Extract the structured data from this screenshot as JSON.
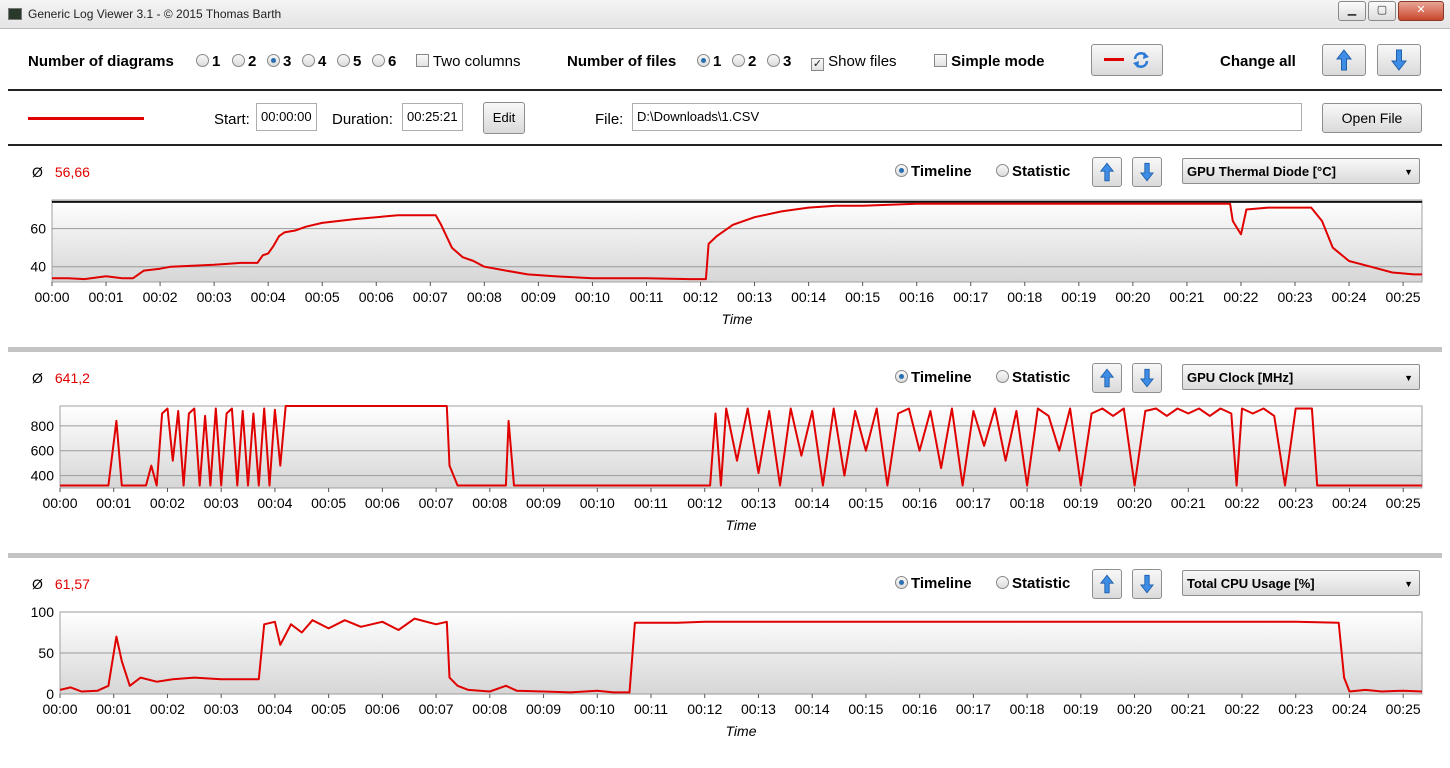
{
  "window": {
    "title": "Generic Log Viewer 3.1 - © 2015 Thomas Barth",
    "minimize": "▁",
    "maximize": "▢",
    "close": "✕"
  },
  "toolbar": {
    "num_diagrams_label": "Number of diagrams",
    "diagram_options": [
      "1",
      "2",
      "3",
      "4",
      "5",
      "6"
    ],
    "diagram_selected": "3",
    "two_columns_label": "Two columns",
    "two_columns_checked": false,
    "num_files_label": "Number of files",
    "file_options": [
      "1",
      "2",
      "3"
    ],
    "file_selected": "1",
    "show_files_label": "Show files",
    "show_files_checked": true,
    "simple_mode_label": "Simple mode",
    "simple_mode_checked": false,
    "change_all_label": "Change all",
    "line_color": "#e00000"
  },
  "file_row": {
    "start_label": "Start:",
    "start_value": "00:00:00",
    "duration_label": "Duration:",
    "duration_value": "00:25:21",
    "edit_label": "Edit",
    "file_label": "File:",
    "file_value": "D:\\Downloads\\1.CSV",
    "open_file_label": "Open File"
  },
  "common": {
    "avg_symbol": "Ø",
    "timeline_label": "Timeline",
    "statistic_label": "Statistic",
    "x_axis_label": "Time",
    "x_ticks": [
      "00:00",
      "00:01",
      "00:02",
      "00:03",
      "00:04",
      "00:05",
      "00:06",
      "00:07",
      "00:08",
      "00:09",
      "00:10",
      "00:11",
      "00:12",
      "00:13",
      "00:14",
      "00:15",
      "00:16",
      "00:17",
      "00:18",
      "00:19",
      "00:20",
      "00:21",
      "00:22",
      "00:23",
      "00:24",
      "00:25"
    ],
    "series_color": "#e00000"
  },
  "panels": [
    {
      "avg": "56,66",
      "sensor": "GPU Thermal Diode [°C]",
      "mode": "Timeline"
    },
    {
      "avg": "641,2",
      "sensor": "GPU Clock [MHz]",
      "mode": "Timeline"
    },
    {
      "avg": "61,57",
      "sensor": "Total CPU Usage [%]",
      "mode": "Timeline"
    }
  ],
  "chart_data": [
    {
      "type": "line",
      "ylabel": "",
      "xlabel": "Time",
      "ylim": [
        32,
        75
      ],
      "yticks": [
        40,
        60
      ],
      "x_unit": "minutes",
      "xlim": [
        0,
        25.35
      ],
      "reference_line": 74,
      "series": [
        {
          "values": [
            [
              0,
              34
            ],
            [
              0.3,
              34
            ],
            [
              0.6,
              33.5
            ],
            [
              1.0,
              35
            ],
            [
              1.3,
              34
            ],
            [
              1.5,
              34
            ],
            [
              1.7,
              38
            ],
            [
              2.0,
              39
            ],
            [
              2.2,
              40
            ],
            [
              2.6,
              40.5
            ],
            [
              3.0,
              41
            ],
            [
              3.5,
              42
            ],
            [
              3.8,
              42
            ],
            [
              3.9,
              46
            ],
            [
              4.0,
              47
            ],
            [
              4.1,
              51
            ],
            [
              4.2,
              56
            ],
            [
              4.3,
              58
            ],
            [
              4.5,
              59
            ],
            [
              4.7,
              61
            ],
            [
              5.0,
              63
            ],
            [
              5.3,
              64
            ],
            [
              5.6,
              65
            ],
            [
              6.0,
              66
            ],
            [
              6.4,
              67
            ],
            [
              6.8,
              67
            ],
            [
              7.1,
              67
            ],
            [
              7.2,
              62
            ],
            [
              7.4,
              50
            ],
            [
              7.6,
              45
            ],
            [
              7.8,
              43
            ],
            [
              8.0,
              40
            ],
            [
              8.4,
              38
            ],
            [
              8.8,
              36
            ],
            [
              9.3,
              35
            ],
            [
              10.0,
              34
            ],
            [
              11.0,
              34
            ],
            [
              11.8,
              33.5
            ],
            [
              12.1,
              33.5
            ],
            [
              12.15,
              52
            ],
            [
              12.3,
              56
            ],
            [
              12.6,
              62
            ],
            [
              13.0,
              66
            ],
            [
              13.5,
              69
            ],
            [
              14.0,
              71
            ],
            [
              14.5,
              72
            ],
            [
              15.0,
              72
            ],
            [
              15.5,
              72.5
            ],
            [
              16.0,
              73
            ],
            [
              17.0,
              73
            ],
            [
              18.0,
              73
            ],
            [
              19.0,
              73
            ],
            [
              20.0,
              73
            ],
            [
              21.0,
              73
            ],
            [
              21.8,
              73
            ],
            [
              21.85,
              64
            ],
            [
              22.0,
              57
            ],
            [
              22.1,
              70
            ],
            [
              22.5,
              71
            ],
            [
              23.0,
              71
            ],
            [
              23.3,
              71
            ],
            [
              23.5,
              64
            ],
            [
              23.7,
              50
            ],
            [
              24.0,
              43
            ],
            [
              24.4,
              40
            ],
            [
              24.8,
              37
            ],
            [
              25.2,
              36
            ],
            [
              25.35,
              36
            ]
          ]
        }
      ]
    },
    {
      "type": "line",
      "ylabel": "",
      "xlabel": "Time",
      "ylim": [
        300,
        960
      ],
      "yticks": [
        400,
        600,
        800
      ],
      "x_unit": "minutes",
      "xlim": [
        0,
        25.35
      ],
      "series": [
        {
          "values": [
            [
              0,
              320
            ],
            [
              0.9,
              320
            ],
            [
              1.05,
              840
            ],
            [
              1.15,
              320
            ],
            [
              1.6,
              320
            ],
            [
              1.7,
              480
            ],
            [
              1.8,
              320
            ],
            [
              1.9,
              900
            ],
            [
              2.0,
              940
            ],
            [
              2.1,
              520
            ],
            [
              2.2,
              920
            ],
            [
              2.3,
              320
            ],
            [
              2.4,
              900
            ],
            [
              2.5,
              940
            ],
            [
              2.6,
              320
            ],
            [
              2.7,
              880
            ],
            [
              2.8,
              320
            ],
            [
              2.9,
              940
            ],
            [
              3.0,
              320
            ],
            [
              3.1,
              900
            ],
            [
              3.2,
              940
            ],
            [
              3.3,
              320
            ],
            [
              3.4,
              920
            ],
            [
              3.5,
              320
            ],
            [
              3.6,
              900
            ],
            [
              3.7,
              320
            ],
            [
              3.8,
              940
            ],
            [
              3.9,
              320
            ],
            [
              4.0,
              930
            ],
            [
              4.1,
              480
            ],
            [
              4.2,
              960
            ],
            [
              7.2,
              960
            ],
            [
              7.25,
              480
            ],
            [
              7.4,
              320
            ],
            [
              8.3,
              320
            ],
            [
              8.35,
              840
            ],
            [
              8.45,
              320
            ],
            [
              12.1,
              320
            ],
            [
              12.2,
              900
            ],
            [
              12.3,
              320
            ],
            [
              12.4,
              940
            ],
            [
              12.6,
              520
            ],
            [
              12.8,
              940
            ],
            [
              13.0,
              420
            ],
            [
              13.2,
              920
            ],
            [
              13.4,
              320
            ],
            [
              13.6,
              940
            ],
            [
              13.8,
              560
            ],
            [
              14.0,
              920
            ],
            [
              14.2,
              320
            ],
            [
              14.4,
              940
            ],
            [
              14.6,
              400
            ],
            [
              14.8,
              920
            ],
            [
              15.0,
              600
            ],
            [
              15.2,
              940
            ],
            [
              15.4,
              320
            ],
            [
              15.6,
              900
            ],
            [
              15.8,
              940
            ],
            [
              16.0,
              600
            ],
            [
              16.2,
              920
            ],
            [
              16.4,
              460
            ],
            [
              16.6,
              940
            ],
            [
              16.8,
              320
            ],
            [
              17.0,
              920
            ],
            [
              17.2,
              640
            ],
            [
              17.4,
              940
            ],
            [
              17.6,
              520
            ],
            [
              17.8,
              920
            ],
            [
              18.0,
              320
            ],
            [
              18.2,
              940
            ],
            [
              18.4,
              880
            ],
            [
              18.6,
              600
            ],
            [
              18.8,
              940
            ],
            [
              19.0,
              320
            ],
            [
              19.2,
              900
            ],
            [
              19.4,
              940
            ],
            [
              19.6,
              880
            ],
            [
              19.8,
              940
            ],
            [
              20.0,
              320
            ],
            [
              20.2,
              920
            ],
            [
              20.4,
              940
            ],
            [
              20.6,
              880
            ],
            [
              20.8,
              940
            ],
            [
              21.0,
              900
            ],
            [
              21.2,
              940
            ],
            [
              21.4,
              880
            ],
            [
              21.6,
              940
            ],
            [
              21.8,
              900
            ],
            [
              21.9,
              320
            ],
            [
              22.0,
              940
            ],
            [
              22.2,
              900
            ],
            [
              22.4,
              940
            ],
            [
              22.6,
              880
            ],
            [
              22.8,
              320
            ],
            [
              23.0,
              940
            ],
            [
              23.3,
              940
            ],
            [
              23.4,
              320
            ],
            [
              25.35,
              320
            ]
          ]
        }
      ]
    },
    {
      "type": "line",
      "ylabel": "",
      "xlabel": "Time",
      "ylim": [
        0,
        100
      ],
      "yticks": [
        0,
        50,
        100
      ],
      "x_unit": "minutes",
      "xlim": [
        0,
        25.35
      ],
      "series": [
        {
          "values": [
            [
              0,
              5
            ],
            [
              0.2,
              8
            ],
            [
              0.4,
              3
            ],
            [
              0.7,
              4
            ],
            [
              0.9,
              10
            ],
            [
              1.05,
              70
            ],
            [
              1.15,
              40
            ],
            [
              1.3,
              10
            ],
            [
              1.5,
              20
            ],
            [
              1.8,
              15
            ],
            [
              2.1,
              18
            ],
            [
              2.5,
              20
            ],
            [
              3.0,
              18
            ],
            [
              3.5,
              18
            ],
            [
              3.7,
              18
            ],
            [
              3.8,
              85
            ],
            [
              4.0,
              88
            ],
            [
              4.1,
              60
            ],
            [
              4.3,
              85
            ],
            [
              4.5,
              75
            ],
            [
              4.7,
              90
            ],
            [
              5.0,
              80
            ],
            [
              5.3,
              90
            ],
            [
              5.6,
              82
            ],
            [
              6.0,
              88
            ],
            [
              6.3,
              78
            ],
            [
              6.6,
              92
            ],
            [
              7.0,
              85
            ],
            [
              7.2,
              88
            ],
            [
              7.25,
              20
            ],
            [
              7.4,
              10
            ],
            [
              7.6,
              5
            ],
            [
              8.0,
              3
            ],
            [
              8.3,
              10
            ],
            [
              8.5,
              4
            ],
            [
              9.0,
              3
            ],
            [
              9.5,
              2
            ],
            [
              10.0,
              4
            ],
            [
              10.3,
              2
            ],
            [
              10.6,
              2
            ],
            [
              10.7,
              87
            ],
            [
              11.5,
              87
            ],
            [
              12.0,
              88
            ],
            [
              13.0,
              88
            ],
            [
              14.0,
              88
            ],
            [
              15.0,
              88
            ],
            [
              16.0,
              88
            ],
            [
              17.0,
              88
            ],
            [
              18.0,
              88
            ],
            [
              19.0,
              88
            ],
            [
              20.0,
              88
            ],
            [
              21.0,
              88
            ],
            [
              22.0,
              88
            ],
            [
              23.0,
              88
            ],
            [
              23.8,
              87
            ],
            [
              23.9,
              20
            ],
            [
              24.0,
              3
            ],
            [
              24.3,
              5
            ],
            [
              24.6,
              3
            ],
            [
              25.0,
              4
            ],
            [
              25.35,
              3
            ]
          ]
        }
      ]
    }
  ]
}
